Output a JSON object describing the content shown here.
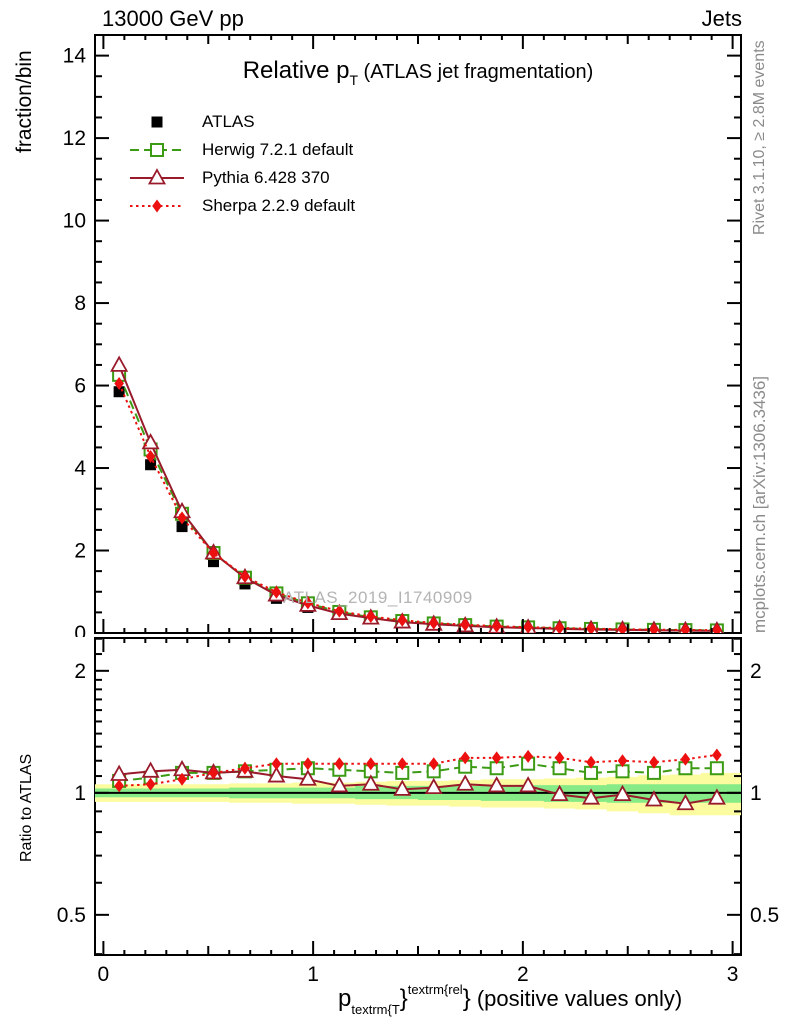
{
  "header": {
    "left": "13000 GeV pp",
    "right": "Jets"
  },
  "plot_title": {
    "main": "Relative p",
    "sub": "T",
    "rest": " (ATLAS jet fragmentation)"
  },
  "watermark": "ATLAS_2019_I1740909",
  "side_notes": {
    "top": "Rivet 3.1.10, ≥ 2.8M events",
    "bottom": "mcplots.cern.ch [arXiv:1306.3436]"
  },
  "axis_titles": {
    "top_y": "fraction/bin",
    "ratio_y": "Ratio to ATLAS",
    "x_parts": {
      "base": "p",
      "sub": "textrm{T",
      "brace1": "}",
      "sup": "textrm{rel",
      "brace2": "}",
      "rest": " (positive values only)"
    }
  },
  "chart_data": {
    "type": "line",
    "title": "Relative p_T (ATLAS jet fragmentation)",
    "xlabel": "p_textrm{T}^textrm{rel}} (positive values only)",
    "ylabel": "fraction/bin",
    "ratio_ylabel": "Ratio to ATLAS",
    "xlim": [
      -0.04,
      3.04
    ],
    "xticks": [
      0,
      1,
      2,
      3
    ],
    "top_panel": {
      "ylim": [
        0,
        14.5
      ],
      "yticks": [
        0,
        2,
        4,
        6,
        8,
        10,
        12,
        14
      ]
    },
    "ratio_panel": {
      "scale": "log",
      "ylim": [
        0.398,
        2.41
      ],
      "yticks": [
        0.5,
        1,
        2
      ]
    },
    "x": [
      0.075,
      0.225,
      0.375,
      0.525,
      0.675,
      0.825,
      0.975,
      1.125,
      1.275,
      1.425,
      1.575,
      1.725,
      1.875,
      2.025,
      2.175,
      2.325,
      2.475,
      2.625,
      2.775,
      2.925
    ],
    "bin_half_width": 0.075,
    "series": [
      {
        "name": "ATLAS",
        "marker": "filled-square",
        "line": "none",
        "color": "#000000",
        "values": [
          5.85,
          4.08,
          2.58,
          1.73,
          1.19,
          0.84,
          0.62,
          0.45,
          0.34,
          0.26,
          0.205,
          0.165,
          0.135,
          0.115,
          0.1,
          0.088,
          0.077,
          0.068,
          0.061,
          0.055
        ]
      },
      {
        "name": "Herwig 7.2.1 default",
        "marker": "open-square",
        "line": "dashed",
        "color": "#3c9b14",
        "values": [
          6.26,
          4.45,
          2.89,
          1.94,
          1.34,
          0.96,
          0.72,
          0.51,
          0.38,
          0.29,
          0.232,
          0.191,
          0.155,
          0.136,
          0.115,
          0.099,
          0.087,
          0.076,
          0.07,
          0.063
        ],
        "ratio": [
          1.07,
          1.09,
          1.12,
          1.12,
          1.13,
          1.14,
          1.15,
          1.14,
          1.13,
          1.12,
          1.13,
          1.16,
          1.15,
          1.18,
          1.15,
          1.12,
          1.13,
          1.12,
          1.15,
          1.15
        ]
      },
      {
        "name": "Pythia 6.428 370",
        "marker": "open-triangle",
        "line": "solid",
        "color": "#991b2b",
        "values": [
          6.49,
          4.61,
          2.94,
          1.94,
          1.34,
          0.92,
          0.67,
          0.47,
          0.36,
          0.265,
          0.211,
          0.173,
          0.14,
          0.12,
          0.099,
          0.085,
          0.076,
          0.066,
          0.057,
          0.053
        ],
        "ratio": [
          1.11,
          1.13,
          1.14,
          1.12,
          1.13,
          1.1,
          1.08,
          1.04,
          1.05,
          1.02,
          1.03,
          1.05,
          1.04,
          1.04,
          0.99,
          0.97,
          0.99,
          0.96,
          0.94,
          0.97
        ]
      },
      {
        "name": "Sherpa 2.2.9 default",
        "marker": "filled-diamond",
        "line": "dotted",
        "color": "#ec1010",
        "values": [
          6.05,
          4.28,
          2.79,
          1.94,
          1.37,
          0.99,
          0.73,
          0.53,
          0.4,
          0.31,
          0.242,
          0.201,
          0.165,
          0.141,
          0.122,
          0.105,
          0.092,
          0.081,
          0.074,
          0.068
        ],
        "ratio": [
          1.04,
          1.05,
          1.08,
          1.12,
          1.15,
          1.18,
          1.18,
          1.18,
          1.18,
          1.18,
          1.18,
          1.22,
          1.22,
          1.23,
          1.22,
          1.19,
          1.2,
          1.19,
          1.21,
          1.24
        ]
      }
    ],
    "uncertainty_band": {
      "yellow_color": "#fbfba0",
      "green_color": "#86ea86",
      "yellow_lo": [
        0.95,
        0.95,
        0.95,
        0.95,
        0.945,
        0.945,
        0.94,
        0.94,
        0.935,
        0.93,
        0.93,
        0.925,
        0.92,
        0.92,
        0.915,
        0.91,
        0.9,
        0.89,
        0.88,
        0.88
      ],
      "yellow_hi": [
        1.05,
        1.05,
        1.05,
        1.05,
        1.055,
        1.055,
        1.06,
        1.06,
        1.065,
        1.07,
        1.07,
        1.075,
        1.08,
        1.08,
        1.085,
        1.09,
        1.095,
        1.105,
        1.11,
        1.12
      ],
      "green_lo": [
        0.975,
        0.975,
        0.975,
        0.975,
        0.97,
        0.97,
        0.97,
        0.97,
        0.965,
        0.965,
        0.96,
        0.96,
        0.955,
        0.955,
        0.95,
        0.95,
        0.945,
        0.945,
        0.945,
        0.945
      ],
      "green_hi": [
        1.025,
        1.025,
        1.025,
        1.025,
        1.03,
        1.03,
        1.03,
        1.03,
        1.04,
        1.04,
        1.04,
        1.04,
        1.045,
        1.045,
        1.045,
        1.045,
        1.05,
        1.05,
        1.05,
        1.05
      ]
    },
    "reference_line": {
      "value": 1,
      "color": "#000000"
    }
  }
}
